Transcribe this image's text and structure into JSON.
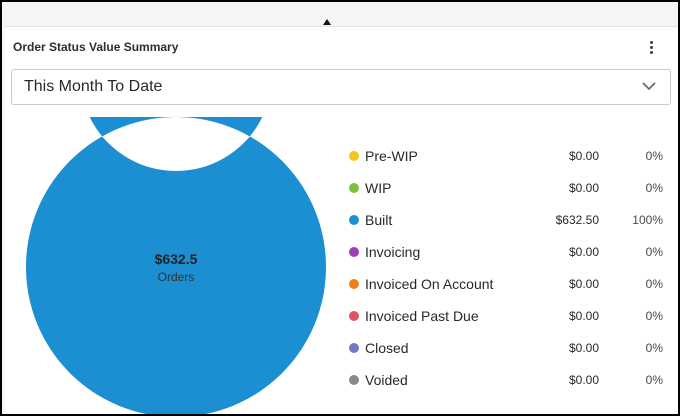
{
  "widget": {
    "title": "Order Status Value Summary",
    "menu_icon": "more-vertical-icon",
    "resize_icon": "resize-vertical-icon"
  },
  "filter": {
    "selected": "This Month To Date",
    "icon": "chevron-down-icon"
  },
  "donut": {
    "center_value": "$632.5",
    "center_label": "Orders",
    "track_color": "#1b8fd2"
  },
  "legend": [
    {
      "label": "Pre-WIP",
      "amount": "$0.00",
      "percent": "0%",
      "color": "#f5c518",
      "value": 0
    },
    {
      "label": "WIP",
      "amount": "$0.00",
      "percent": "0%",
      "color": "#7cc23a",
      "value": 0
    },
    {
      "label": "Built",
      "amount": "$632.50",
      "percent": "100%",
      "color": "#1b8fd2",
      "value": 632.5
    },
    {
      "label": "Invoicing",
      "amount": "$0.00",
      "percent": "0%",
      "color": "#9b3fb7",
      "value": 0
    },
    {
      "label": "Invoiced On Account",
      "amount": "$0.00",
      "percent": "0%",
      "color": "#ef7f1a",
      "value": 0
    },
    {
      "label": "Invoiced Past Due",
      "amount": "$0.00",
      "percent": "0%",
      "color": "#df5663",
      "value": 0
    },
    {
      "label": "Closed",
      "amount": "$0.00",
      "percent": "0%",
      "color": "#6f79c8",
      "value": 0
    },
    {
      "label": "Voided",
      "amount": "$0.00",
      "percent": "0%",
      "color": "#8a8a8a",
      "value": 0
    }
  ]
}
